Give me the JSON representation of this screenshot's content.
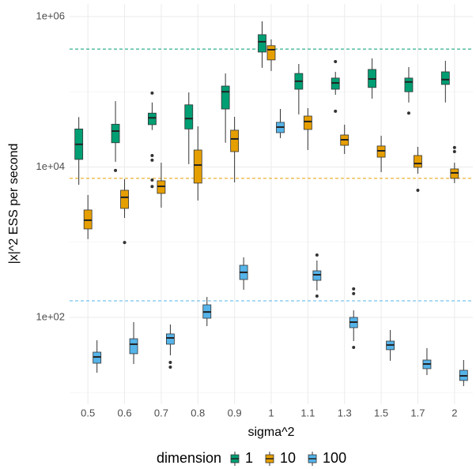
{
  "chart_data": {
    "type": "boxplot",
    "x_label": "sigma^2",
    "y_label": "|x|^2 ESS per second",
    "log_y": true,
    "grid": true,
    "legend_title": "dimension",
    "legend_position": "bottom",
    "categories": [
      "0.5",
      "0.6",
      "0.7",
      "0.8",
      "0.9",
      "1",
      "1.1",
      "1.3",
      "1.5",
      "1.7",
      "2"
    ],
    "ylim": [
      7,
      1470000
    ],
    "yticks": [
      {
        "value": 100,
        "label": "1e+02"
      },
      {
        "value": 10000,
        "label": "1e+04"
      },
      {
        "value": 1000000,
        "label": "1e+06"
      }
    ],
    "series": [
      {
        "name": "1",
        "color": "#009E73",
        "reference": 370000,
        "boxes": [
          {
            "low": 5800,
            "q1": 12600,
            "median": 20000,
            "q3": 32000,
            "high": 46000,
            "outliers": []
          },
          {
            "low": 11700,
            "q1": 21000,
            "median": 30000,
            "q3": 37000,
            "high": 75000,
            "outliers": [
              9000
            ]
          },
          {
            "low": 31000,
            "q1": 36500,
            "median": 45000,
            "q3": 52000,
            "high": 72000,
            "outliers": [
              96000,
              14200,
              12300,
              6700,
              5500
            ]
          },
          {
            "low": 10900,
            "q1": 32000,
            "median": 44000,
            "q3": 67000,
            "high": 98000,
            "outliers": []
          },
          {
            "low": 21000,
            "q1": 59000,
            "median": 100000,
            "q3": 119000,
            "high": 175000,
            "outliers": []
          },
          {
            "low": 208000,
            "q1": 337000,
            "median": 462000,
            "q3": 574000,
            "high": 865000,
            "outliers": []
          },
          {
            "low": 50000,
            "q1": 108000,
            "median": 138000,
            "q3": 175000,
            "high": 234000,
            "outliers": []
          },
          {
            "low": 91000,
            "q1": 108000,
            "median": 131000,
            "q3": 152000,
            "high": 184000,
            "outliers": [
              252000,
              55000
            ]
          },
          {
            "low": 81000,
            "q1": 114000,
            "median": 148000,
            "q3": 198000,
            "high": 278000,
            "outliers": []
          },
          {
            "low": 72000,
            "q1": 100000,
            "median": 135000,
            "q3": 152000,
            "high": 213000,
            "outliers": [
              52000
            ]
          },
          {
            "low": 72000,
            "q1": 125000,
            "median": 145000,
            "q3": 184000,
            "high": 258000,
            "outliers": []
          }
        ]
      },
      {
        "name": "10",
        "color": "#E69F00",
        "reference": 7050,
        "boxes": [
          {
            "low": 1100,
            "q1": 1500,
            "median": 1960,
            "q3": 2680,
            "high": 4240,
            "outliers": []
          },
          {
            "low": 2100,
            "q1": 2810,
            "median": 3950,
            "q3": 4900,
            "high": 6900,
            "outliers": [
              990
            ]
          },
          {
            "low": 2880,
            "q1": 4450,
            "median": 5530,
            "q3": 6550,
            "high": 11400,
            "outliers": []
          },
          {
            "low": 3580,
            "q1": 6100,
            "median": 10600,
            "q3": 16800,
            "high": 34700,
            "outliers": []
          },
          {
            "low": 6240,
            "q1": 16000,
            "median": 23600,
            "q3": 30800,
            "high": 46400,
            "outliers": []
          },
          {
            "low": 189000,
            "q1": 265000,
            "median": 362000,
            "q3": 410000,
            "high": 497000,
            "outliers": []
          },
          {
            "low": 16800,
            "q1": 31500,
            "median": 40200,
            "q3": 47500,
            "high": 60500,
            "outliers": []
          },
          {
            "low": 14900,
            "q1": 19400,
            "median": 23000,
            "q3": 26600,
            "high": 36500,
            "outliers": []
          },
          {
            "low": 8550,
            "q1": 13500,
            "median": 16400,
            "q3": 19000,
            "high": 26000,
            "outliers": []
          },
          {
            "low": 8150,
            "q1": 9880,
            "median": 11100,
            "q3": 14200,
            "high": 18500,
            "outliers": [
              4900
            ]
          },
          {
            "low": 6100,
            "q1": 7050,
            "median": 8340,
            "q3": 9420,
            "high": 11400,
            "outliers": [
              18100,
              16000
            ]
          }
        ]
      },
      {
        "name": "100",
        "color": "#56B4E9",
        "reference": 166,
        "boxes": [
          {
            "low": 18.4,
            "q1": 24.6,
            "median": 29.8,
            "q3": 34.5,
            "high": 49.7,
            "outliers": []
          },
          {
            "low": 24,
            "q1": 32.9,
            "median": 44,
            "q3": 52,
            "high": 86.5,
            "outliers": []
          },
          {
            "low": 31.3,
            "q1": 44,
            "median": 53.3,
            "q3": 60.3,
            "high": 80.5,
            "outliers": [
              25.2,
              21.8
            ]
          },
          {
            "low": 76.6,
            "q1": 97.5,
            "median": 118,
            "q3": 147,
            "high": 187,
            "outliers": []
          },
          {
            "low": 233,
            "q1": 319,
            "median": 397,
            "q3": 493,
            "high": 628,
            "outliers": []
          },
          {
            "low": 24200,
            "q1": 28600,
            "median": 33900,
            "q3": 39200,
            "high": 59100,
            "outliers": []
          },
          {
            "low": 228,
            "q1": 311,
            "median": 369,
            "q3": 416,
            "high": 570,
            "outliers": [
              675,
              192
            ]
          },
          {
            "low": 48.4,
            "q1": 73,
            "median": 86.5,
            "q3": 100,
            "high": 124,
            "outliers": [
              239,
              207,
              39.9
            ]
          },
          {
            "low": 26.5,
            "q1": 37.2,
            "median": 43,
            "q3": 48.4,
            "high": 68,
            "outliers": []
          },
          {
            "low": 17.1,
            "q1": 20.8,
            "median": 24,
            "q3": 27.1,
            "high": 39,
            "outliers": []
          },
          {
            "low": 12.2,
            "q1": 14.5,
            "median": 16.7,
            "q3": 19.8,
            "high": 27.1,
            "outliers": []
          }
        ]
      }
    ]
  }
}
